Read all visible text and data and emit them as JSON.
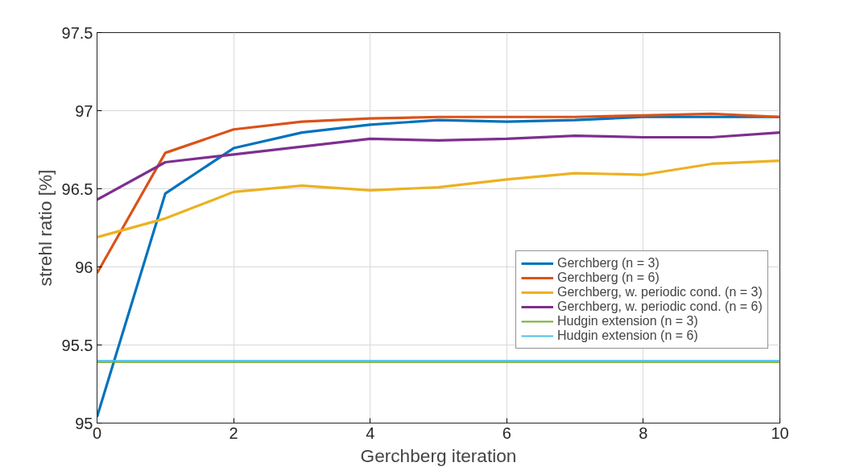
{
  "chart_data": {
    "type": "line",
    "xlabel": "Gerchberg iteration",
    "ylabel": "strehl ratio [%]",
    "x": [
      0,
      1,
      2,
      3,
      4,
      5,
      6,
      7,
      8,
      9,
      10
    ],
    "series": [
      {
        "name": "Gerchberg (n = 3)",
        "color": "#0072bd",
        "values": [
          95.04,
          96.47,
          96.76,
          96.86,
          96.91,
          96.94,
          96.93,
          96.94,
          96.96,
          96.96,
          96.96
        ]
      },
      {
        "name": "Gerchberg (n = 6)",
        "color": "#d95319",
        "values": [
          95.96,
          96.73,
          96.88,
          96.93,
          96.95,
          96.96,
          96.96,
          96.96,
          96.97,
          96.98,
          96.96
        ]
      },
      {
        "name": "Gerchberg, w. periodic cond. (n = 3)",
        "color": "#edb120",
        "values": [
          96.19,
          96.31,
          96.48,
          96.52,
          96.49,
          96.51,
          96.56,
          96.6,
          96.59,
          96.66,
          96.68
        ]
      },
      {
        "name": "Gerchberg, w. periodic cond. (n = 6)",
        "color": "#7e2f8e",
        "values": [
          96.43,
          96.67,
          96.72,
          96.77,
          96.82,
          96.81,
          96.82,
          96.84,
          96.83,
          96.83,
          96.86
        ]
      },
      {
        "name": "Hudgin extension (n = 3)",
        "color": "#77ac30",
        "values": [
          95.39,
          95.39,
          95.39,
          95.39,
          95.39,
          95.39,
          95.39,
          95.39,
          95.39,
          95.39,
          95.39
        ]
      },
      {
        "name": "Hudgin extension (n = 6)",
        "color": "#4dbeee",
        "values": [
          95.4,
          95.4,
          95.4,
          95.4,
          95.4,
          95.4,
          95.4,
          95.4,
          95.4,
          95.4,
          95.4
        ]
      }
    ],
    "xlim": [
      0,
      10
    ],
    "xticks": [
      0,
      2,
      4,
      6,
      8,
      10
    ],
    "ylim": [
      95,
      97.5
    ],
    "yticks": [
      95,
      95.5,
      96,
      96.5,
      97,
      97.5
    ],
    "grid": true,
    "legend": "bottom right",
    "marker": "none",
    "line_style": "solid"
  }
}
